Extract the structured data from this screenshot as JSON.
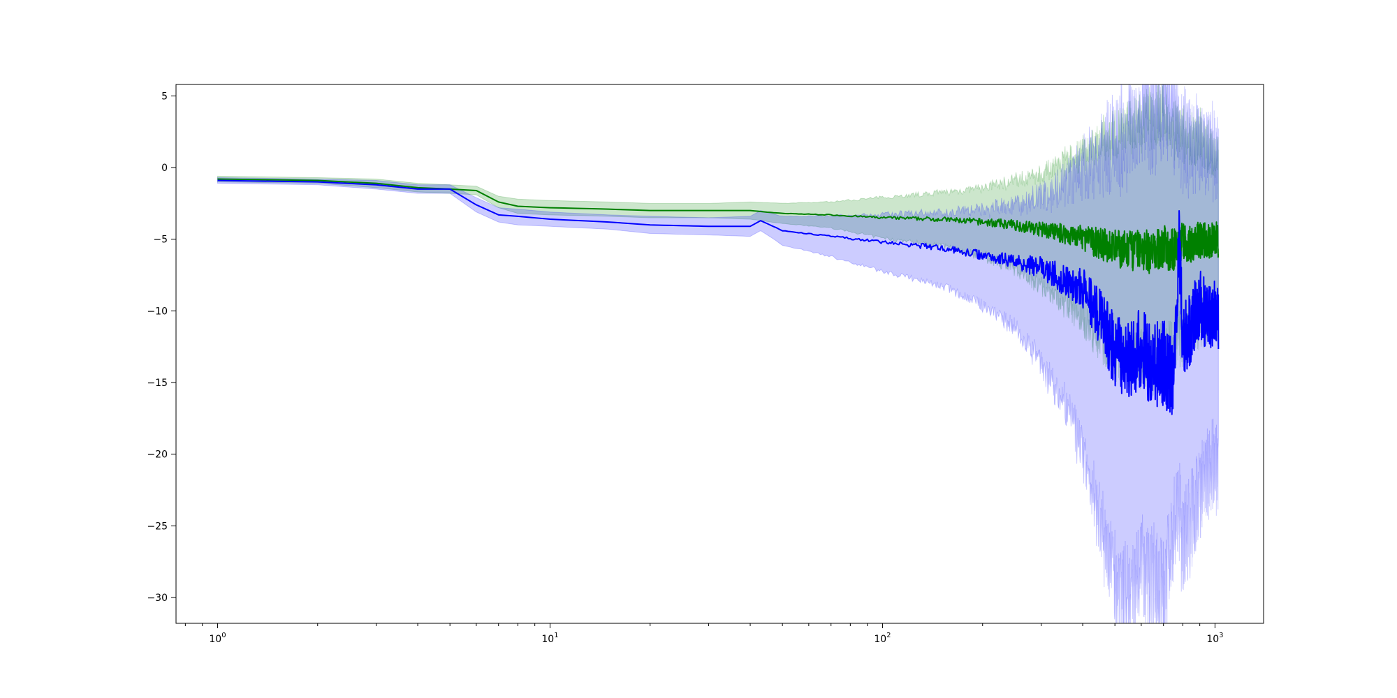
{
  "chart_data": {
    "type": "line",
    "title": "",
    "xlabel": "",
    "ylabel": "",
    "x_scale": "log",
    "xlim": [
      0.75,
      1400
    ],
    "ylim": [
      -31.8,
      5.8
    ],
    "grid": false,
    "legend": "none",
    "x_ticks": [
      {
        "value": 1,
        "base": "10",
        "exp": "0"
      },
      {
        "value": 10,
        "base": "10",
        "exp": "1"
      },
      {
        "value": 100,
        "base": "10",
        "exp": "2"
      },
      {
        "value": 1000,
        "base": "10",
        "exp": "3"
      }
    ],
    "y_ticks": [
      {
        "value": 5,
        "label": "5"
      },
      {
        "value": 0,
        "label": "0"
      },
      {
        "value": -5,
        "label": "−5"
      },
      {
        "value": -10,
        "label": "−10"
      },
      {
        "value": -15,
        "label": "−15"
      },
      {
        "value": -20,
        "label": "−20"
      },
      {
        "value": -25,
        "label": "−25"
      },
      {
        "value": -30,
        "label": "−30"
      }
    ],
    "series": [
      {
        "color": "#008000",
        "band_color": "#008000",
        "band_opacity": 0.2,
        "x": [
          1,
          2,
          3,
          4,
          5,
          6,
          7,
          8,
          10,
          15,
          20,
          30,
          40,
          50,
          70,
          100,
          150,
          200,
          250,
          300,
          350,
          400,
          450,
          500,
          550,
          600,
          650,
          700,
          750,
          800,
          850,
          900,
          950,
          1000,
          1024
        ],
        "y": [
          -0.8,
          -0.9,
          -1.1,
          -1.4,
          -1.5,
          -1.6,
          -2.4,
          -2.7,
          -2.8,
          -2.9,
          -3.0,
          -3.0,
          -3.0,
          -3.2,
          -3.3,
          -3.5,
          -3.6,
          -3.8,
          -4.0,
          -4.3,
          -4.6,
          -4.9,
          -5.3,
          -5.6,
          -5.8,
          -5.7,
          -6.0,
          -5.5,
          -5.8,
          -5.2,
          -5.4,
          -5.0,
          -5.2,
          -4.9,
          -5.0
        ],
        "upper": [
          -0.6,
          -0.7,
          -0.8,
          -1.1,
          -1.2,
          -1.3,
          -2.0,
          -2.2,
          -2.3,
          -2.4,
          -2.5,
          -2.5,
          -2.4,
          -2.5,
          -2.4,
          -2.1,
          -1.8,
          -1.5,
          -1.0,
          -0.6,
          0.2,
          0.8,
          1.5,
          2.0,
          2.5,
          2.8,
          3.2,
          3.6,
          2.5,
          2.0,
          1.5,
          2.0,
          1.2,
          0.5,
          1.0
        ],
        "lower": [
          -1.0,
          -1.1,
          -1.4,
          -1.7,
          -1.8,
          -1.9,
          -2.8,
          -3.2,
          -3.3,
          -3.4,
          -3.5,
          -3.5,
          -3.6,
          -3.9,
          -4.2,
          -4.9,
          -5.4,
          -6.1,
          -7.0,
          -8.0,
          -9.2,
          -10.5,
          -11.8,
          -12.8,
          -13.2,
          -13.0,
          -13.5,
          -12.5,
          -12.2,
          -11.5,
          -11.0,
          -10.5,
          -10.5,
          -10.0,
          -10.5
        ]
      },
      {
        "color": "#0000ff",
        "band_color": "#0000ff",
        "band_opacity": 0.2,
        "x": [
          1,
          2,
          3,
          4,
          5,
          6,
          7,
          8,
          10,
          15,
          20,
          30,
          40,
          43,
          50,
          70,
          100,
          150,
          200,
          250,
          300,
          350,
          400,
          450,
          500,
          550,
          600,
          650,
          700,
          750,
          780,
          800,
          850,
          900,
          950,
          1000,
          1024
        ],
        "y": [
          -0.9,
          -1.0,
          -1.2,
          -1.5,
          -1.5,
          -2.6,
          -3.3,
          -3.4,
          -3.6,
          -3.8,
          -4.0,
          -4.1,
          -4.1,
          -3.7,
          -4.4,
          -4.8,
          -5.2,
          -5.6,
          -6.1,
          -6.5,
          -7.0,
          -7.8,
          -8.5,
          -10.5,
          -12.8,
          -13.5,
          -12.5,
          -14.0,
          -13.5,
          -15.0,
          -5.5,
          -12.0,
          -11.0,
          -9.5,
          -10.5,
          -10.0,
          -10.5
        ],
        "upper": [
          -0.7,
          -0.8,
          -0.9,
          -1.2,
          -1.2,
          -2.1,
          -2.8,
          -2.9,
          -3.1,
          -3.3,
          -3.4,
          -3.5,
          -3.4,
          -3.0,
          -3.4,
          -3.4,
          -3.3,
          -3.2,
          -3.0,
          -2.8,
          -2.3,
          -1.5,
          -0.5,
          0.3,
          1.2,
          2.0,
          2.6,
          3.2,
          3.6,
          2.5,
          2.0,
          1.5,
          1.0,
          0.8,
          0.5,
          0.4,
          0.5
        ],
        "lower": [
          -1.1,
          -1.2,
          -1.5,
          -1.8,
          -1.8,
          -3.1,
          -3.8,
          -4.0,
          -4.1,
          -4.3,
          -4.6,
          -4.7,
          -4.8,
          -4.4,
          -5.4,
          -6.2,
          -7.2,
          -8.2,
          -9.5,
          -11.0,
          -13.5,
          -16.0,
          -19.5,
          -24.0,
          -28.5,
          -29.5,
          -27.0,
          -28.0,
          -29.8,
          -25.0,
          -23.0,
          -26.0,
          -23.5,
          -22.0,
          -21.0,
          -20.0,
          -21.0
        ]
      }
    ]
  }
}
